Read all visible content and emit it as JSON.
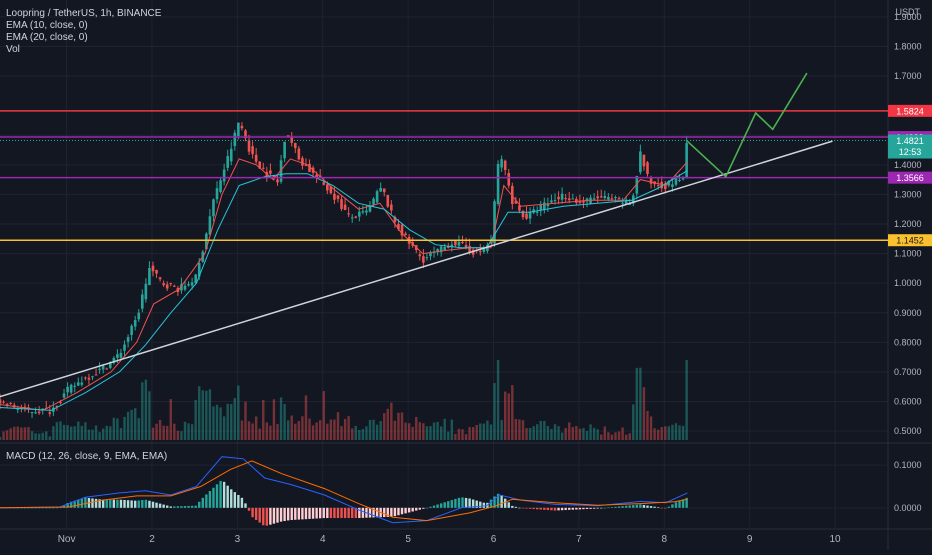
{
  "chart_header": {
    "symbol_line": "Loopring / TetherUS, 1h, BINANCE",
    "indicators": [
      "EMA (10, close, 0)",
      "EMA (20, close, 0)",
      "Vol"
    ],
    "macd_label": "MACD (12, 26, close, 9, EMA, EMA)",
    "currency_unit": "USDT"
  },
  "colors": {
    "background": "#131722",
    "grid": "#1f2331",
    "up": "#26a69a",
    "down": "#ef5350",
    "ema10": "#ef5350",
    "ema20": "#26c6da",
    "trendline": "#d1d4dc",
    "projection": "#4caf50",
    "red_level": "#f23645",
    "purple_level": "#9c27b0",
    "yellow_level": "#fbc02d",
    "macd_line": "#2962ff",
    "signal_line": "#ff6d00"
  },
  "chart_data": {
    "type": "candlestick",
    "price_axis": {
      "ticks": [
        "1.9000",
        "1.8000",
        "1.7000",
        "1.5000",
        "1.4000",
        "1.3000",
        "1.2000",
        "1.1000",
        "1.0000",
        "0.9000",
        "0.8000",
        "0.7000",
        "0.6000",
        "0.5000"
      ],
      "range": [
        0.47,
        1.93
      ]
    },
    "time_axis": {
      "ticks": [
        "Nov",
        "2",
        "3",
        "4",
        "5",
        "6",
        "7",
        "8",
        "9",
        "10"
      ],
      "range": [
        0,
        10.4
      ]
    },
    "horizontal_levels": [
      {
        "value": 1.5824,
        "label": "1.5824",
        "color": "#f23645"
      },
      {
        "value": 1.4939,
        "label": "1.4939",
        "color": "#9c27b0"
      },
      {
        "value": 1.3566,
        "label": "1.3566",
        "color": "#9c27b0"
      },
      {
        "value": 1.1452,
        "label": "1.1452",
        "color": "#fbc02d"
      }
    ],
    "current_price": {
      "value": 1.4821,
      "label": "1.4821",
      "countdown": "12:53"
    },
    "trendline": [
      [
        -0.3,
        0.59
      ],
      [
        9.75,
        1.48
      ]
    ],
    "projection_path": [
      [
        8.05,
        1.48
      ],
      [
        8.5,
        1.36
      ],
      [
        8.85,
        1.575
      ],
      [
        9.05,
        1.52
      ],
      [
        9.45,
        1.71
      ]
    ],
    "price_path": [
      [
        0.0,
        0.598
      ],
      [
        0.3,
        0.57
      ],
      [
        0.6,
        0.57
      ],
      [
        0.8,
        0.64
      ],
      [
        1.0,
        0.68
      ],
      [
        1.2,
        0.71
      ],
      [
        1.4,
        0.76
      ],
      [
        1.6,
        0.88
      ],
      [
        1.75,
        1.05
      ],
      [
        1.9,
        1.0
      ],
      [
        2.1,
        0.98
      ],
      [
        2.3,
        1.02
      ],
      [
        2.5,
        1.28
      ],
      [
        2.7,
        1.45
      ],
      [
        2.8,
        1.55
      ],
      [
        2.95,
        1.43
      ],
      [
        3.1,
        1.38
      ],
      [
        3.25,
        1.34
      ],
      [
        3.35,
        1.52
      ],
      [
        3.5,
        1.42
      ],
      [
        3.7,
        1.36
      ],
      [
        3.9,
        1.3
      ],
      [
        4.1,
        1.22
      ],
      [
        4.3,
        1.24
      ],
      [
        4.45,
        1.32
      ],
      [
        4.5,
        1.3
      ],
      [
        4.6,
        1.22
      ],
      [
        4.75,
        1.15
      ],
      [
        4.95,
        1.08
      ],
      [
        5.15,
        1.11
      ],
      [
        5.3,
        1.14
      ],
      [
        5.45,
        1.12
      ],
      [
        5.6,
        1.1
      ],
      [
        5.75,
        1.14
      ],
      [
        5.85,
        1.45
      ],
      [
        6.0,
        1.28
      ],
      [
        6.15,
        1.22
      ],
      [
        6.35,
        1.26
      ],
      [
        6.6,
        1.3
      ],
      [
        6.8,
        1.27
      ],
      [
        7.0,
        1.29
      ],
      [
        7.2,
        1.28
      ],
      [
        7.4,
        1.27
      ],
      [
        7.5,
        1.44
      ],
      [
        7.6,
        1.34
      ],
      [
        7.8,
        1.33
      ],
      [
        8.0,
        1.36
      ],
      [
        8.05,
        1.482
      ]
    ],
    "ema10_path": [
      [
        0.0,
        0.59
      ],
      [
        0.5,
        0.57
      ],
      [
        0.9,
        0.63
      ],
      [
        1.3,
        0.7
      ],
      [
        1.6,
        0.8
      ],
      [
        1.8,
        0.93
      ],
      [
        2.1,
        0.98
      ],
      [
        2.4,
        1.1
      ],
      [
        2.6,
        1.3
      ],
      [
        2.8,
        1.42
      ],
      [
        3.0,
        1.4
      ],
      [
        3.2,
        1.35
      ],
      [
        3.4,
        1.42
      ],
      [
        3.6,
        1.4
      ],
      [
        3.9,
        1.32
      ],
      [
        4.2,
        1.25
      ],
      [
        4.45,
        1.27
      ],
      [
        4.7,
        1.17
      ],
      [
        4.95,
        1.1
      ],
      [
        5.2,
        1.11
      ],
      [
        5.5,
        1.12
      ],
      [
        5.75,
        1.12
      ],
      [
        5.9,
        1.33
      ],
      [
        6.1,
        1.26
      ],
      [
        6.5,
        1.27
      ],
      [
        6.9,
        1.28
      ],
      [
        7.3,
        1.28
      ],
      [
        7.5,
        1.35
      ],
      [
        7.8,
        1.33
      ],
      [
        8.05,
        1.41
      ]
    ],
    "ema20_path": [
      [
        0.0,
        0.58
      ],
      [
        0.6,
        0.57
      ],
      [
        1.0,
        0.63
      ],
      [
        1.4,
        0.7
      ],
      [
        1.7,
        0.79
      ],
      [
        2.0,
        0.9
      ],
      [
        2.3,
        1.0
      ],
      [
        2.55,
        1.18
      ],
      [
        2.8,
        1.33
      ],
      [
        3.1,
        1.36
      ],
      [
        3.35,
        1.37
      ],
      [
        3.6,
        1.37
      ],
      [
        3.9,
        1.33
      ],
      [
        4.2,
        1.27
      ],
      [
        4.5,
        1.25
      ],
      [
        4.8,
        1.18
      ],
      [
        5.1,
        1.13
      ],
      [
        5.4,
        1.12
      ],
      [
        5.7,
        1.12
      ],
      [
        5.95,
        1.24
      ],
      [
        6.2,
        1.24
      ],
      [
        6.6,
        1.26
      ],
      [
        7.0,
        1.27
      ],
      [
        7.4,
        1.28
      ],
      [
        7.7,
        1.32
      ],
      [
        8.05,
        1.38
      ]
    ],
    "macd_axis": {
      "ticks": [
        "0.1000",
        "0.0000"
      ],
      "range": [
        -0.045,
        0.145
      ]
    },
    "macd_path": [
      [
        0.0,
        0.0
      ],
      [
        0.7,
        0.002
      ],
      [
        1.0,
        0.025
      ],
      [
        1.4,
        0.035
      ],
      [
        1.7,
        0.04
      ],
      [
        2.0,
        0.03
      ],
      [
        2.3,
        0.05
      ],
      [
        2.6,
        0.12
      ],
      [
        2.85,
        0.115
      ],
      [
        3.1,
        0.07
      ],
      [
        3.4,
        0.055
      ],
      [
        3.8,
        0.03
      ],
      [
        4.2,
        -0.005
      ],
      [
        4.6,
        -0.035
      ],
      [
        5.0,
        -0.03
      ],
      [
        5.4,
        0.0
      ],
      [
        5.7,
        0.005
      ],
      [
        5.85,
        0.03
      ],
      [
        6.1,
        0.018
      ],
      [
        6.5,
        0.008
      ],
      [
        7.0,
        0.005
      ],
      [
        7.5,
        0.015
      ],
      [
        7.8,
        0.012
      ],
      [
        8.05,
        0.035
      ]
    ],
    "signal_path": [
      [
        0.0,
        0.0
      ],
      [
        0.8,
        0.002
      ],
      [
        1.2,
        0.018
      ],
      [
        1.6,
        0.028
      ],
      [
        2.0,
        0.028
      ],
      [
        2.35,
        0.05
      ],
      [
        2.7,
        0.09
      ],
      [
        2.95,
        0.11
      ],
      [
        3.3,
        0.08
      ],
      [
        3.8,
        0.045
      ],
      [
        4.2,
        0.01
      ],
      [
        4.6,
        -0.022
      ],
      [
        5.0,
        -0.03
      ],
      [
        5.5,
        -0.012
      ],
      [
        5.8,
        0.004
      ],
      [
        6.0,
        0.02
      ],
      [
        6.5,
        0.012
      ],
      [
        7.0,
        0.006
      ],
      [
        7.5,
        0.01
      ],
      [
        7.9,
        0.014
      ],
      [
        8.05,
        0.02
      ]
    ]
  }
}
